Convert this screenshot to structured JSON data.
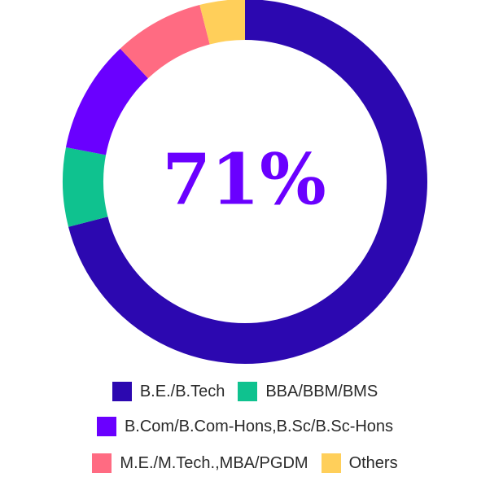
{
  "chart_data": {
    "type": "pie",
    "center_label": "71%",
    "categories": [
      "B.E./B.Tech",
      "BBA/BBM/BMS",
      "B.Com/B.Com-Hons,B.Sc/B.Sc-Hons",
      "M.E./M.Tech.,MBA/PGDM",
      "Others"
    ],
    "values": [
      71,
      7,
      10,
      8,
      4
    ],
    "colors": [
      "#2c08b0",
      "#0fc28f",
      "#6a00ff",
      "#ff6b82",
      "#ffcf5a"
    ],
    "center_label_color": "#6a00ff",
    "legend_position": "bottom"
  }
}
